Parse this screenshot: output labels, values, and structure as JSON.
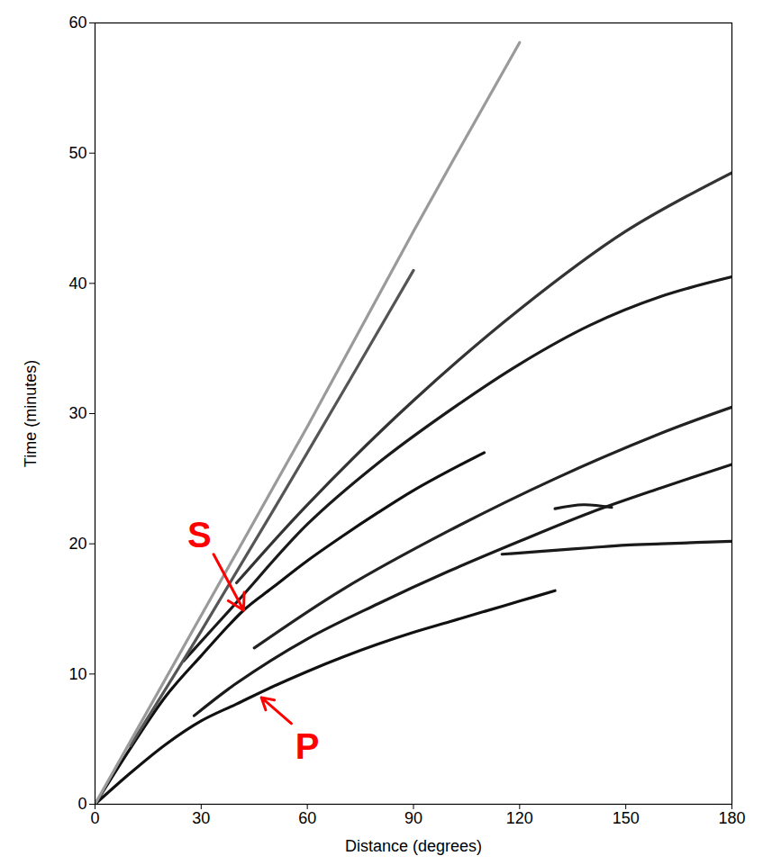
{
  "chart_data": {
    "type": "line",
    "xlabel": "Distance (degrees)",
    "ylabel": "Time (minutes)",
    "xlim": [
      0,
      180
    ],
    "ylim": [
      0,
      60
    ],
    "xticks": [
      0,
      30,
      60,
      90,
      120,
      150,
      180
    ],
    "yticks": [
      0,
      10,
      20,
      30,
      40,
      50,
      60
    ],
    "grid": false,
    "series": [
      {
        "color": "#111111",
        "x": [
          0,
          10,
          20,
          30,
          40,
          50,
          60,
          70,
          80,
          90,
          100,
          110,
          120,
          130
        ],
        "values": [
          0,
          2.4,
          4.6,
          6.4,
          7.7,
          9.0,
          10.2,
          11.3,
          12.3,
          13.2,
          14.0,
          14.8,
          15.6,
          16.4
        ]
      },
      {
        "color": "#1a1a1a",
        "x": [
          28,
          40,
          60,
          80,
          100,
          120,
          140,
          160,
          180
        ],
        "values": [
          6.8,
          9.3,
          12.7,
          15.4,
          17.9,
          20.2,
          22.4,
          24.3,
          26.1
        ]
      },
      {
        "color": "#111111",
        "x": [
          0,
          10,
          20,
          30,
          42,
          50,
          60,
          70,
          80,
          90,
          100,
          110
        ],
        "values": [
          0,
          4.3,
          8.3,
          11.4,
          14.9,
          16.6,
          18.7,
          20.6,
          22.4,
          24.1,
          25.6,
          27.0
        ]
      },
      {
        "color": "#1a1a1a",
        "x": [
          25,
          40,
          60,
          80,
          100,
          120,
          140,
          160,
          180
        ],
        "values": [
          11.0,
          15.5,
          21.5,
          26.2,
          30.2,
          33.8,
          36.8,
          39.0,
          40.5
        ]
      },
      {
        "color": "#333333",
        "x": [
          40,
          60,
          90,
          120,
          150,
          180
        ],
        "values": [
          17.0,
          23.0,
          31.0,
          38.0,
          44.0,
          48.5
        ]
      },
      {
        "color": "#222222",
        "x": [
          45,
          70,
          100,
          130,
          160,
          180
        ],
        "values": [
          12.0,
          16.5,
          21.0,
          25.0,
          28.5,
          30.5
        ]
      },
      {
        "color": "#1a1a1a",
        "x": [
          115,
          120,
          130,
          140,
          150,
          160,
          170,
          180
        ],
        "values": [
          19.2,
          19.3,
          19.5,
          19.7,
          19.9,
          20.0,
          20.1,
          20.2
        ]
      },
      {
        "color": "#1a1a1a",
        "x": [
          130,
          138,
          146
        ],
        "values": [
          22.7,
          23.0,
          22.8
        ]
      },
      {
        "color": "#555555",
        "x": [
          10,
          30,
          60,
          90
        ],
        "values": [
          4.5,
          13.3,
          27.0,
          41.0
        ]
      },
      {
        "color": "#9a9a9a",
        "x": [
          0,
          30,
          60,
          90,
          120
        ],
        "values": [
          0,
          14.5,
          29.0,
          44.0,
          58.5
        ]
      }
    ],
    "annotations": [
      {
        "text": "S",
        "color": "#ff0000",
        "x": 29.5,
        "y": 20.6,
        "from": [
          33.5,
          19.2
        ],
        "to": [
          42,
          14.9
        ]
      },
      {
        "text": "P",
        "color": "#ff0000",
        "x": 60,
        "y": 4.4,
        "from": [
          55.5,
          6.2
        ],
        "to": [
          47,
          8.2
        ]
      }
    ]
  }
}
